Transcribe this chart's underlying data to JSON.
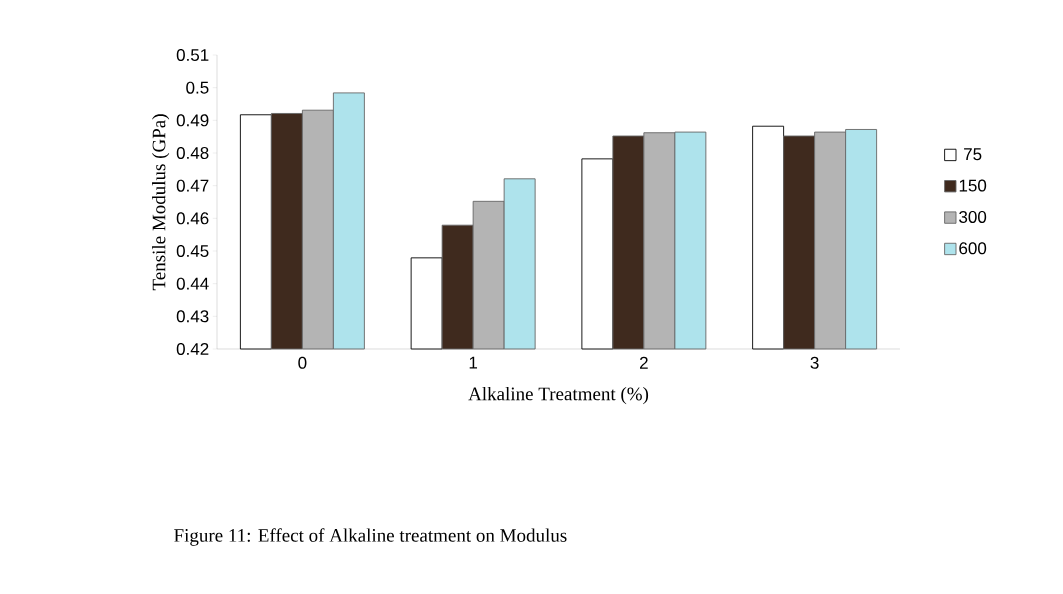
{
  "chart_data": {
    "type": "bar",
    "xlabel": "Alkaline Treatment (%)",
    "ylabel": "Tensile Modulus (GPa)",
    "categories": [
      "0",
      "1",
      "2",
      "3"
    ],
    "series": [
      {
        "name": "75",
        "color": "#ffffff",
        "values": [
          0.4917,
          0.4479,
          0.4782,
          0.4882
        ]
      },
      {
        "name": "150",
        "color": "#3f2a1e",
        "values": [
          0.4921,
          0.4579,
          0.4852,
          0.4852
        ]
      },
      {
        "name": "300",
        "color": "#b4b4b4",
        "values": [
          0.4931,
          0.4652,
          0.4862,
          0.4864
        ]
      },
      {
        "name": "600",
        "color": "#aee3ec",
        "values": [
          0.4984,
          0.4721,
          0.4864,
          0.4872
        ]
      }
    ],
    "ylim": [
      0.42,
      0.51
    ],
    "yticks": [
      0.42,
      0.43,
      0.44,
      0.45,
      0.46,
      0.47,
      0.48,
      0.49,
      0.5,
      0.51
    ],
    "grid": false,
    "legend": "right",
    "annotations": [
      "Figure 11: Effect of Alkaline treatment on Modulus"
    ]
  }
}
